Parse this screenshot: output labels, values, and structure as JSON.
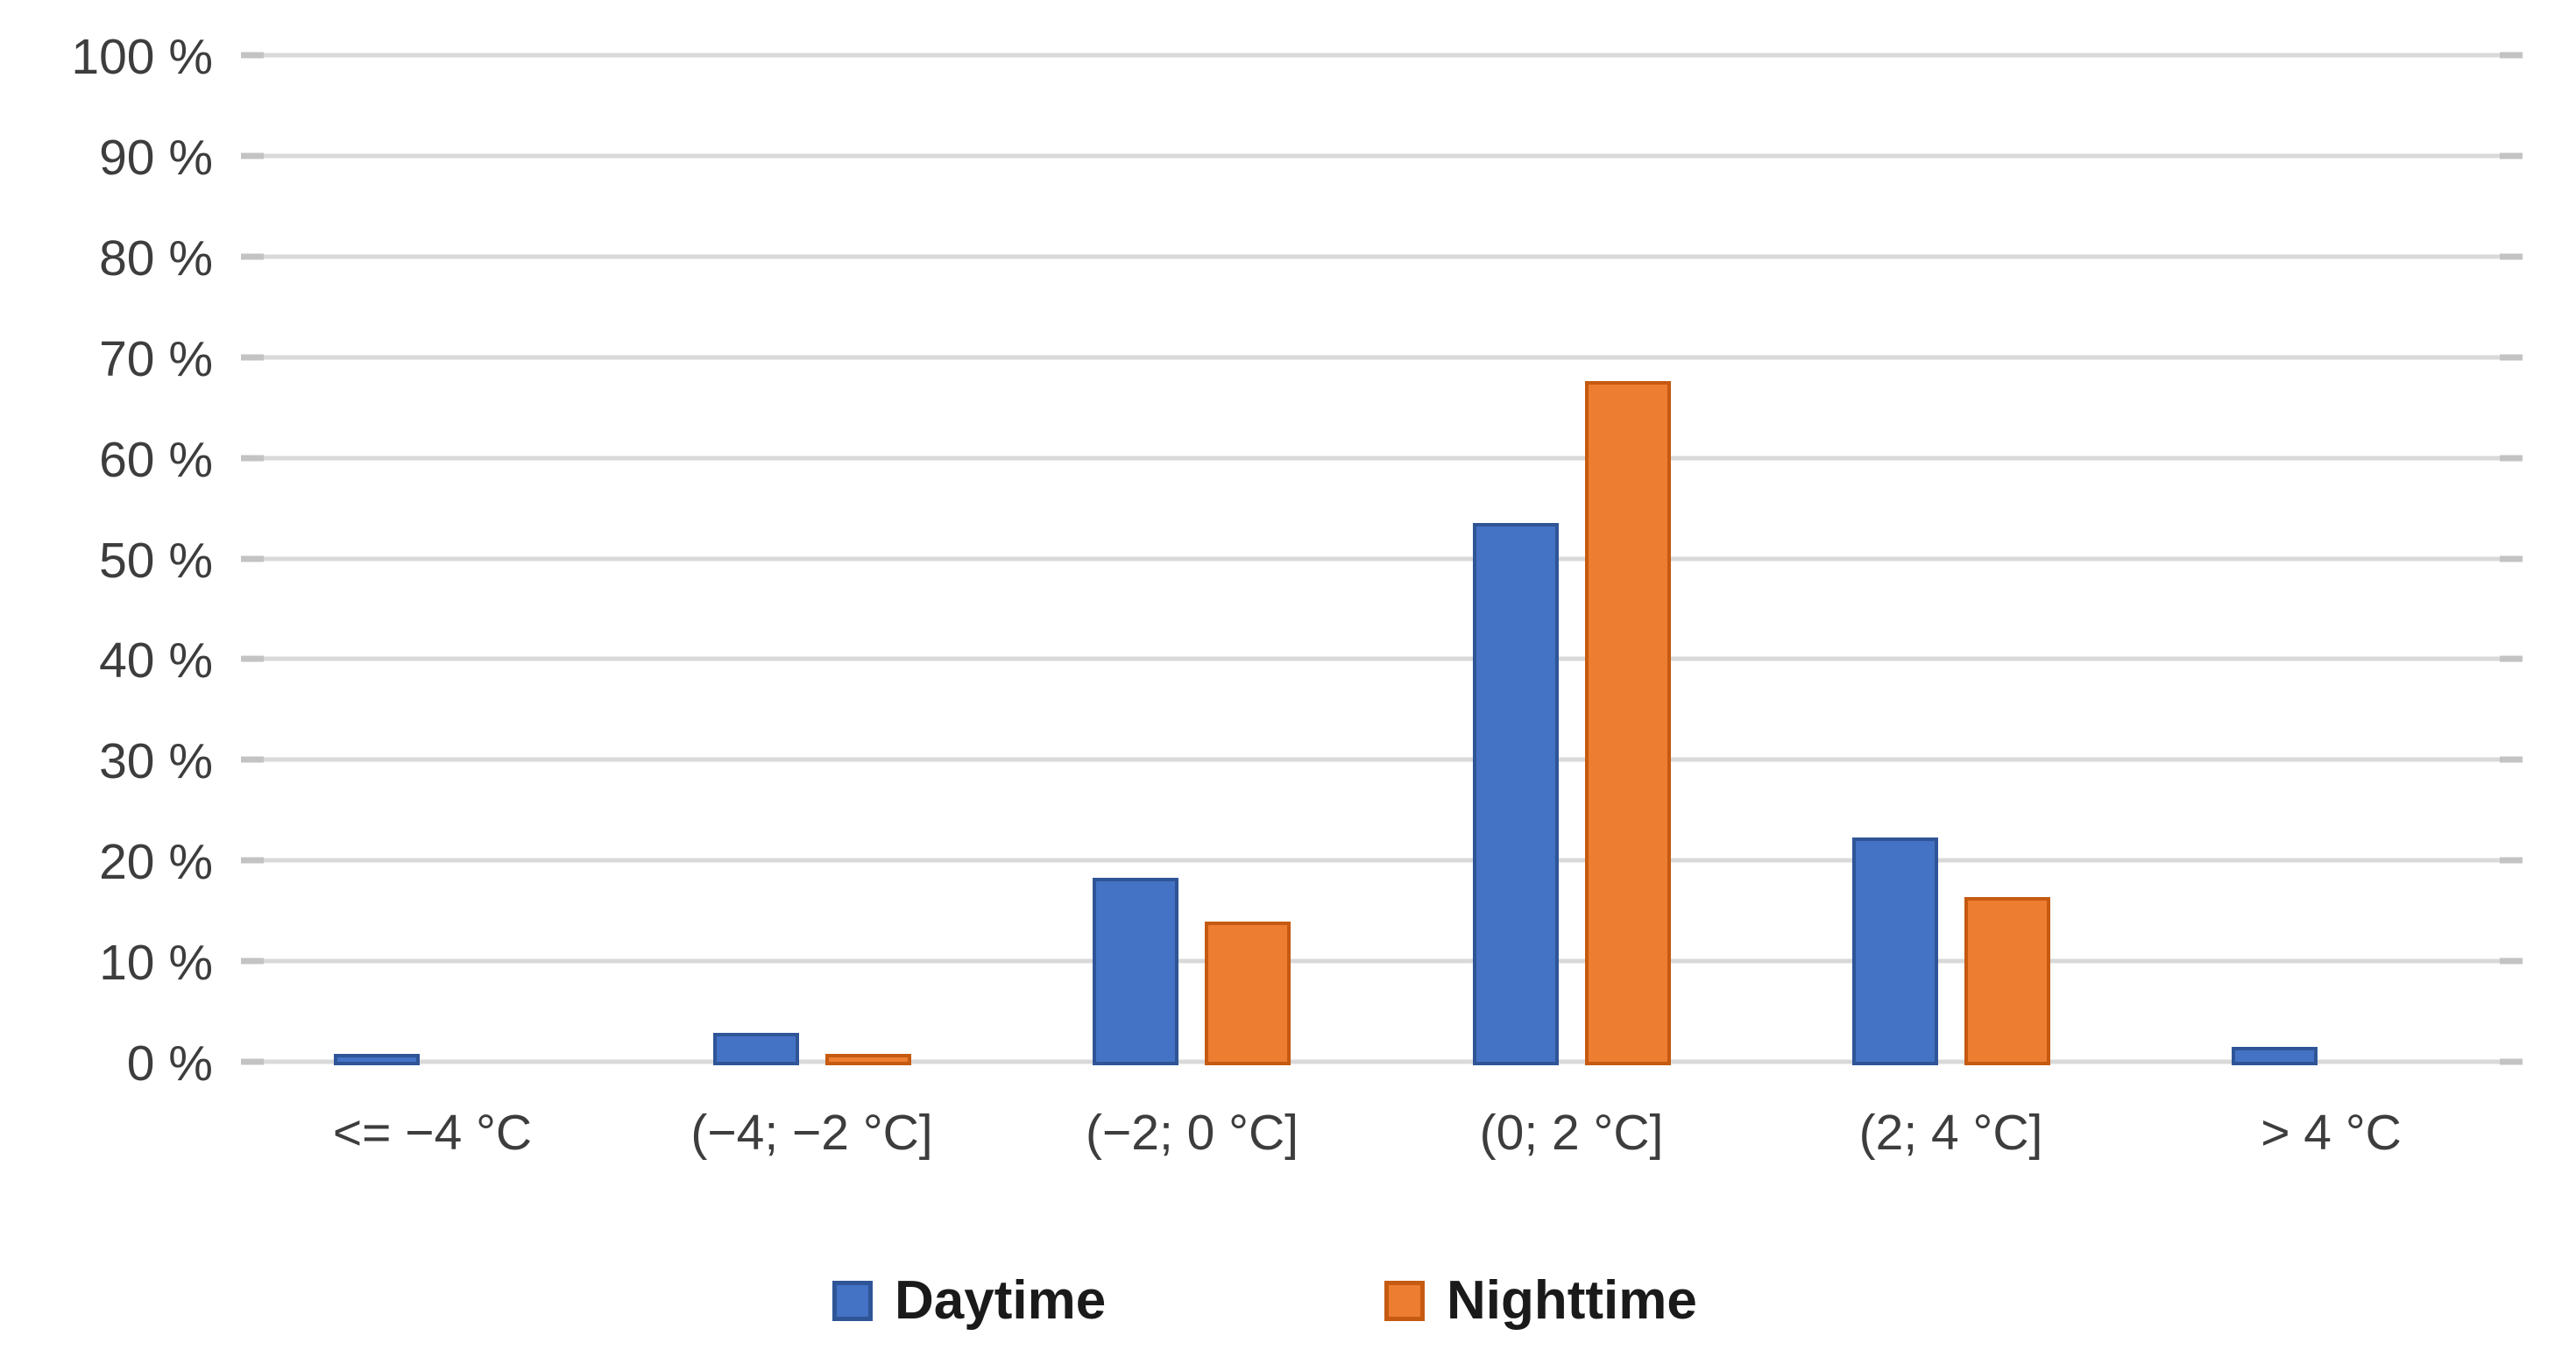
{
  "chart_data": {
    "type": "bar",
    "categories": [
      "<= −4 °C",
      "(−4; −2 °C]",
      "(−2; 0 °C]",
      "(0; 2 °C]",
      "(2; 4 °C]",
      "> 4 °C"
    ],
    "series": [
      {
        "name": "Daytime",
        "fill_color": "#4472C4",
        "border_color": "#2F5597",
        "values": [
          0.8,
          2.9,
          18.3,
          53.5,
          22.3,
          1.5
        ]
      },
      {
        "name": "Nighttime",
        "fill_color": "#ED7D31",
        "border_color": "#C55A11",
        "values": [
          0.0,
          0.8,
          13.9,
          67.6,
          16.4,
          0.0
        ]
      }
    ],
    "ylim": [
      0,
      100
    ],
    "ytick_step": 10,
    "yticklabels": [
      "0 %",
      "10 %",
      "20 %",
      "30 %",
      "40 %",
      "50 %",
      "60 %",
      "70 %",
      "80 %",
      "90 %",
      "100 %"
    ],
    "grid": true,
    "legend_position": "bottom"
  },
  "colors": {
    "background": "#FFFFFF",
    "gridline": "#D9D9D9",
    "gridline_tick": "#C3C3C3",
    "axis_text": "#3D3D3D",
    "legend_text": "#1A1A1A"
  }
}
